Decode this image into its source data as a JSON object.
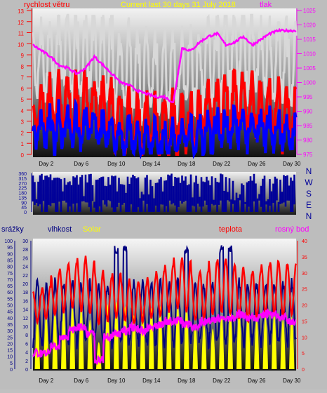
{
  "colors": {
    "wind_label": "#ff0000",
    "pressure": "#ff00ff",
    "wind_avg": "#ff0000",
    "wind_gust": "#d8d8d8",
    "wind_low": "#0000ff",
    "direction": "#000099",
    "humidity": "#000080",
    "solar": "#ffff00",
    "temperature": "#ff0000",
    "dewpoint": "#ff00ff",
    "title": "#ffff00",
    "rain_label": "#000080",
    "tick_text": "#000000"
  },
  "header": {
    "title": "Current last 30 days 31 July 2018"
  },
  "chart_data": [
    {
      "type": "line",
      "id": "wind_pressure",
      "series": [
        {
          "name": "rychlost větru",
          "axis": "left",
          "ylim": [
            0,
            13
          ],
          "ticks": [
            0,
            1,
            2,
            3,
            4,
            5,
            6,
            7,
            8,
            9,
            10,
            11,
            12,
            13
          ]
        },
        {
          "name": "tlak",
          "axis": "right",
          "ylim": [
            975,
            1025
          ],
          "ticks": [
            975,
            980,
            985,
            990,
            995,
            1000,
            1005,
            1010,
            1015,
            1020,
            1025
          ]
        }
      ],
      "pressure_trend": [
        1013,
        1011,
        1009,
        1006,
        1005,
        1003,
        1005,
        1009,
        1006,
        1003,
        1000,
        999,
        997,
        996,
        995,
        995,
        993,
        1012,
        1011,
        1014,
        1016,
        1017,
        1013,
        1014,
        1016,
        1013,
        1015,
        1017,
        1018,
        1018
      ],
      "xlabels": [
        "Day 2",
        "Day 6",
        "Day 10",
        "Day 14",
        "Day 18",
        "Day 22",
        "Day 26",
        "Day 30"
      ]
    },
    {
      "type": "scatter",
      "id": "wind_direction",
      "ylim": [
        0,
        360
      ],
      "ticks": [
        0,
        45,
        90,
        135,
        180,
        225,
        270,
        315,
        360
      ],
      "compass": [
        "N",
        "W",
        "S",
        "E",
        "N"
      ]
    },
    {
      "type": "line",
      "id": "temp_humidity",
      "series": [
        {
          "name": "srážky",
          "axis": "left1",
          "ylim": [
            0,
            100
          ],
          "ticks": [
            0,
            5,
            10,
            15,
            20,
            25,
            30,
            35,
            40,
            45,
            50,
            55,
            60,
            65,
            70,
            75,
            80,
            85,
            90,
            95,
            100
          ]
        },
        {
          "name": "vlhkost",
          "axis": "left2",
          "ylim": [
            0,
            30
          ],
          "ticks": [
            0,
            2,
            4,
            6,
            8,
            10,
            12,
            14,
            16,
            18,
            20,
            22,
            24,
            26,
            28,
            30
          ]
        },
        {
          "name": "Solar"
        },
        {
          "name": "teplota",
          "axis": "right",
          "ylim": [
            0,
            40
          ],
          "ticks": [
            0,
            5,
            10,
            15,
            20,
            25,
            30,
            35,
            40
          ]
        },
        {
          "name": "rosný bod"
        }
      ],
      "temp_max": [
        24,
        26,
        30,
        32,
        33,
        35,
        34,
        31,
        29,
        30,
        28,
        27,
        27,
        29,
        31,
        33,
        35,
        34,
        30,
        31,
        34,
        35,
        33,
        32,
        30,
        31,
        33,
        34,
        33,
        33
      ],
      "temp_min": [
        15,
        16,
        17,
        18,
        19,
        18,
        17,
        14,
        15,
        16,
        15,
        14,
        15,
        16,
        17,
        18,
        19,
        18,
        15,
        16,
        17,
        18,
        17,
        16,
        15,
        16,
        17,
        17,
        16,
        17
      ],
      "dew": [
        5,
        5,
        7,
        10,
        12,
        13,
        11,
        3,
        10,
        11,
        12,
        13,
        12,
        13,
        14,
        15,
        15,
        14,
        13,
        15,
        15,
        16,
        16,
        17,
        16,
        16,
        17,
        17,
        16,
        15
      ],
      "solar_peak": [
        55,
        60,
        65,
        66,
        70,
        68,
        55,
        30,
        72,
        75,
        70,
        60,
        62,
        68,
        70,
        70,
        72,
        70,
        50,
        50,
        45,
        60,
        62,
        65,
        62,
        55,
        58,
        60,
        55,
        58
      ],
      "xlabels": [
        "Day 2",
        "Day 6",
        "Day 10",
        "Day 14",
        "Day 18",
        "Day 22",
        "Day 26",
        "Day 30"
      ]
    }
  ]
}
